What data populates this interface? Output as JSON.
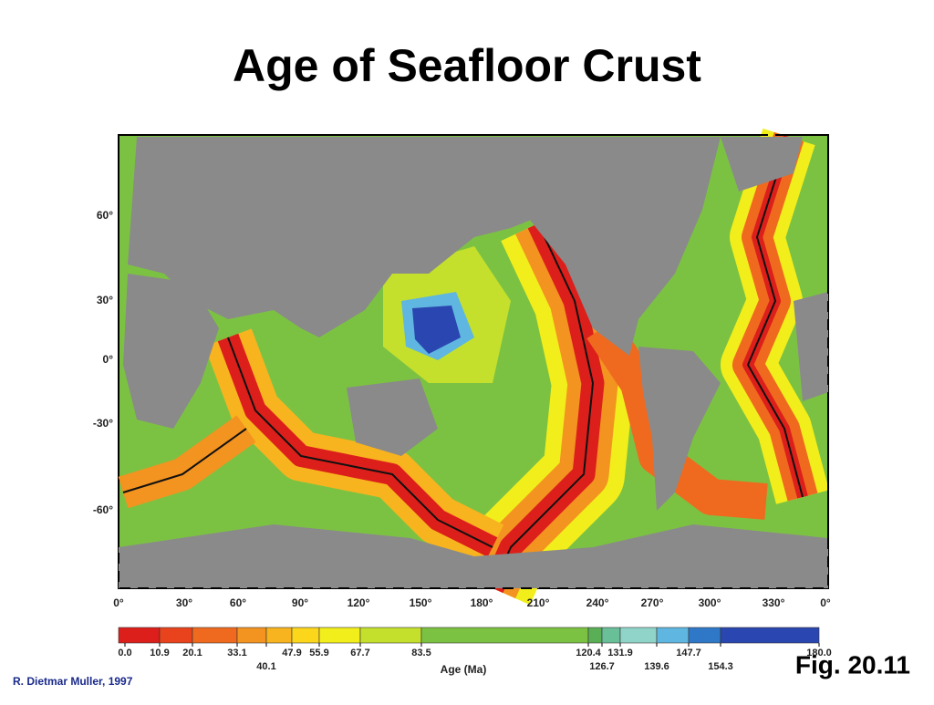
{
  "title": "Age of Seafloor Crust",
  "map": {
    "lat_labels": [
      "60°",
      "30°",
      "0°",
      "-30°",
      "-60°"
    ],
    "lon_labels": [
      "0°",
      "30°",
      "60°",
      "90°",
      "120°",
      "150°",
      "180°",
      "210°",
      "240°",
      "270°",
      "300°",
      "330°",
      "0°"
    ]
  },
  "colorbar": {
    "label": "Age (Ma)",
    "ticks": [
      {
        "value": 0,
        "label": "0.0"
      },
      10.9,
      20.1,
      33.1,
      40.1,
      47.9,
      55.9,
      67.7,
      83.5,
      120.4,
      126.7,
      131.9,
      139.6,
      147.7,
      154.3,
      {
        "value": 180,
        "label": "180.0"
      }
    ],
    "colors": [
      "#dc1f1b",
      "#e8431c",
      "#ef6a1f",
      "#f39320",
      "#f8b41e",
      "#fbd61b",
      "#f2ee1b",
      "#c4e02d",
      "#7cc242",
      "#5aae55",
      "#69bf98",
      "#90d4c9",
      "#5fb6e0",
      "#2f78c8",
      "#2a46b0"
    ]
  },
  "figure_label": "Fig. 20.11",
  "credit": "R. Dietmar Muller, 1997"
}
